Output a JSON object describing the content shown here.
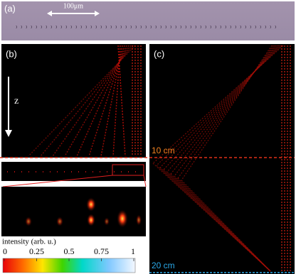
{
  "panels": {
    "a": {
      "label": "(a)",
      "scale_bar": "100μm"
    },
    "b": {
      "label": "(b)",
      "axis": "z"
    },
    "c": {
      "label": "(c)",
      "marks": [
        "10 cm",
        "20 cm"
      ]
    }
  },
  "colorbar": {
    "label": "intensity (arb. u.)",
    "ticks": [
      0,
      0.25,
      0.5,
      0.75,
      1
    ]
  }
}
